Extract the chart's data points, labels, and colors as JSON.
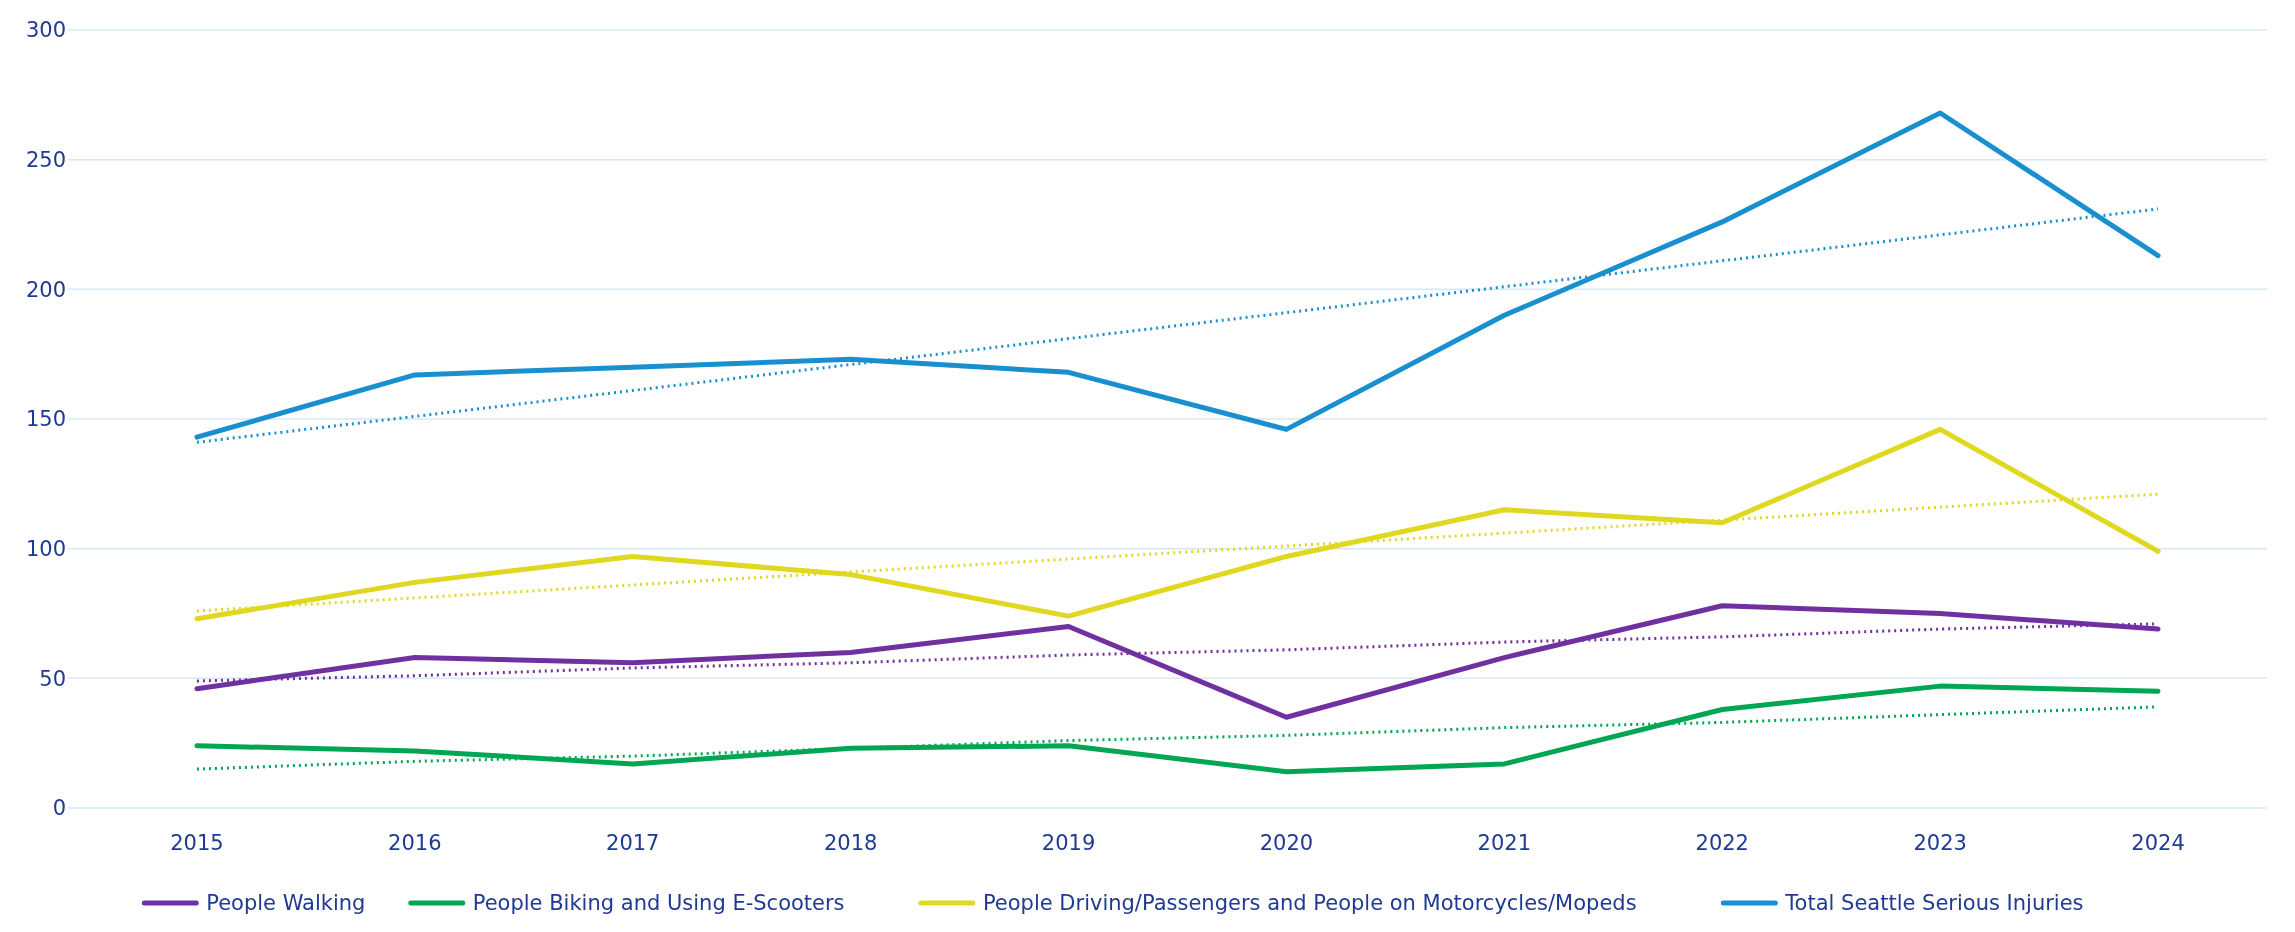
{
  "chart_data": {
    "type": "line",
    "categories": [
      "2015",
      "2016",
      "2017",
      "2018",
      "2019",
      "2020",
      "2021",
      "2022",
      "2023",
      "2024"
    ],
    "series": [
      {
        "name": "People Walking",
        "color": "#7030a0",
        "values": [
          46,
          58,
          56,
          60,
          70,
          35,
          58,
          78,
          75,
          69
        ]
      },
      {
        "name": "People Biking and Using E-Scooters",
        "color": "#00a651",
        "values": [
          24,
          22,
          17,
          23,
          24,
          14,
          17,
          38,
          47,
          45
        ]
      },
      {
        "name": "People Driving/Passengers and People on Motorcycles/Mopeds",
        "color": "#e0d820",
        "values": [
          73,
          87,
          97,
          90,
          74,
          97,
          115,
          110,
          146,
          99
        ]
      },
      {
        "name": "Total Seattle Serious Injuries",
        "color": "#1a8fd0",
        "values": [
          143,
          167,
          170,
          173,
          168,
          146,
          190,
          226,
          268,
          213
        ]
      },
      {
        "color": "#7030a0",
        "values": [
          49,
          51,
          54,
          56,
          59,
          61,
          64,
          66,
          69,
          71
        ],
        "line_style": "dotted"
      },
      {
        "color": "#00a651",
        "values": [
          15,
          18,
          20,
          23,
          26,
          28,
          31,
          33,
          36,
          39
        ],
        "line_style": "dotted"
      },
      {
        "color": "#e0d820",
        "values": [
          76,
          81,
          86,
          91,
          96,
          101,
          106,
          111,
          116,
          121
        ],
        "line_style": "dotted"
      },
      {
        "color": "#1a8fd0",
        "values": [
          141,
          151,
          161,
          171,
          181,
          191,
          201,
          211,
          221,
          231
        ],
        "line_style": "dotted"
      }
    ],
    "ylim": [
      0,
      300
    ],
    "yticks": [
      0,
      50,
      100,
      150,
      200,
      250,
      300
    ],
    "grid": "y",
    "legend": "bottom",
    "marker": "none",
    "line_style": "solid"
  }
}
